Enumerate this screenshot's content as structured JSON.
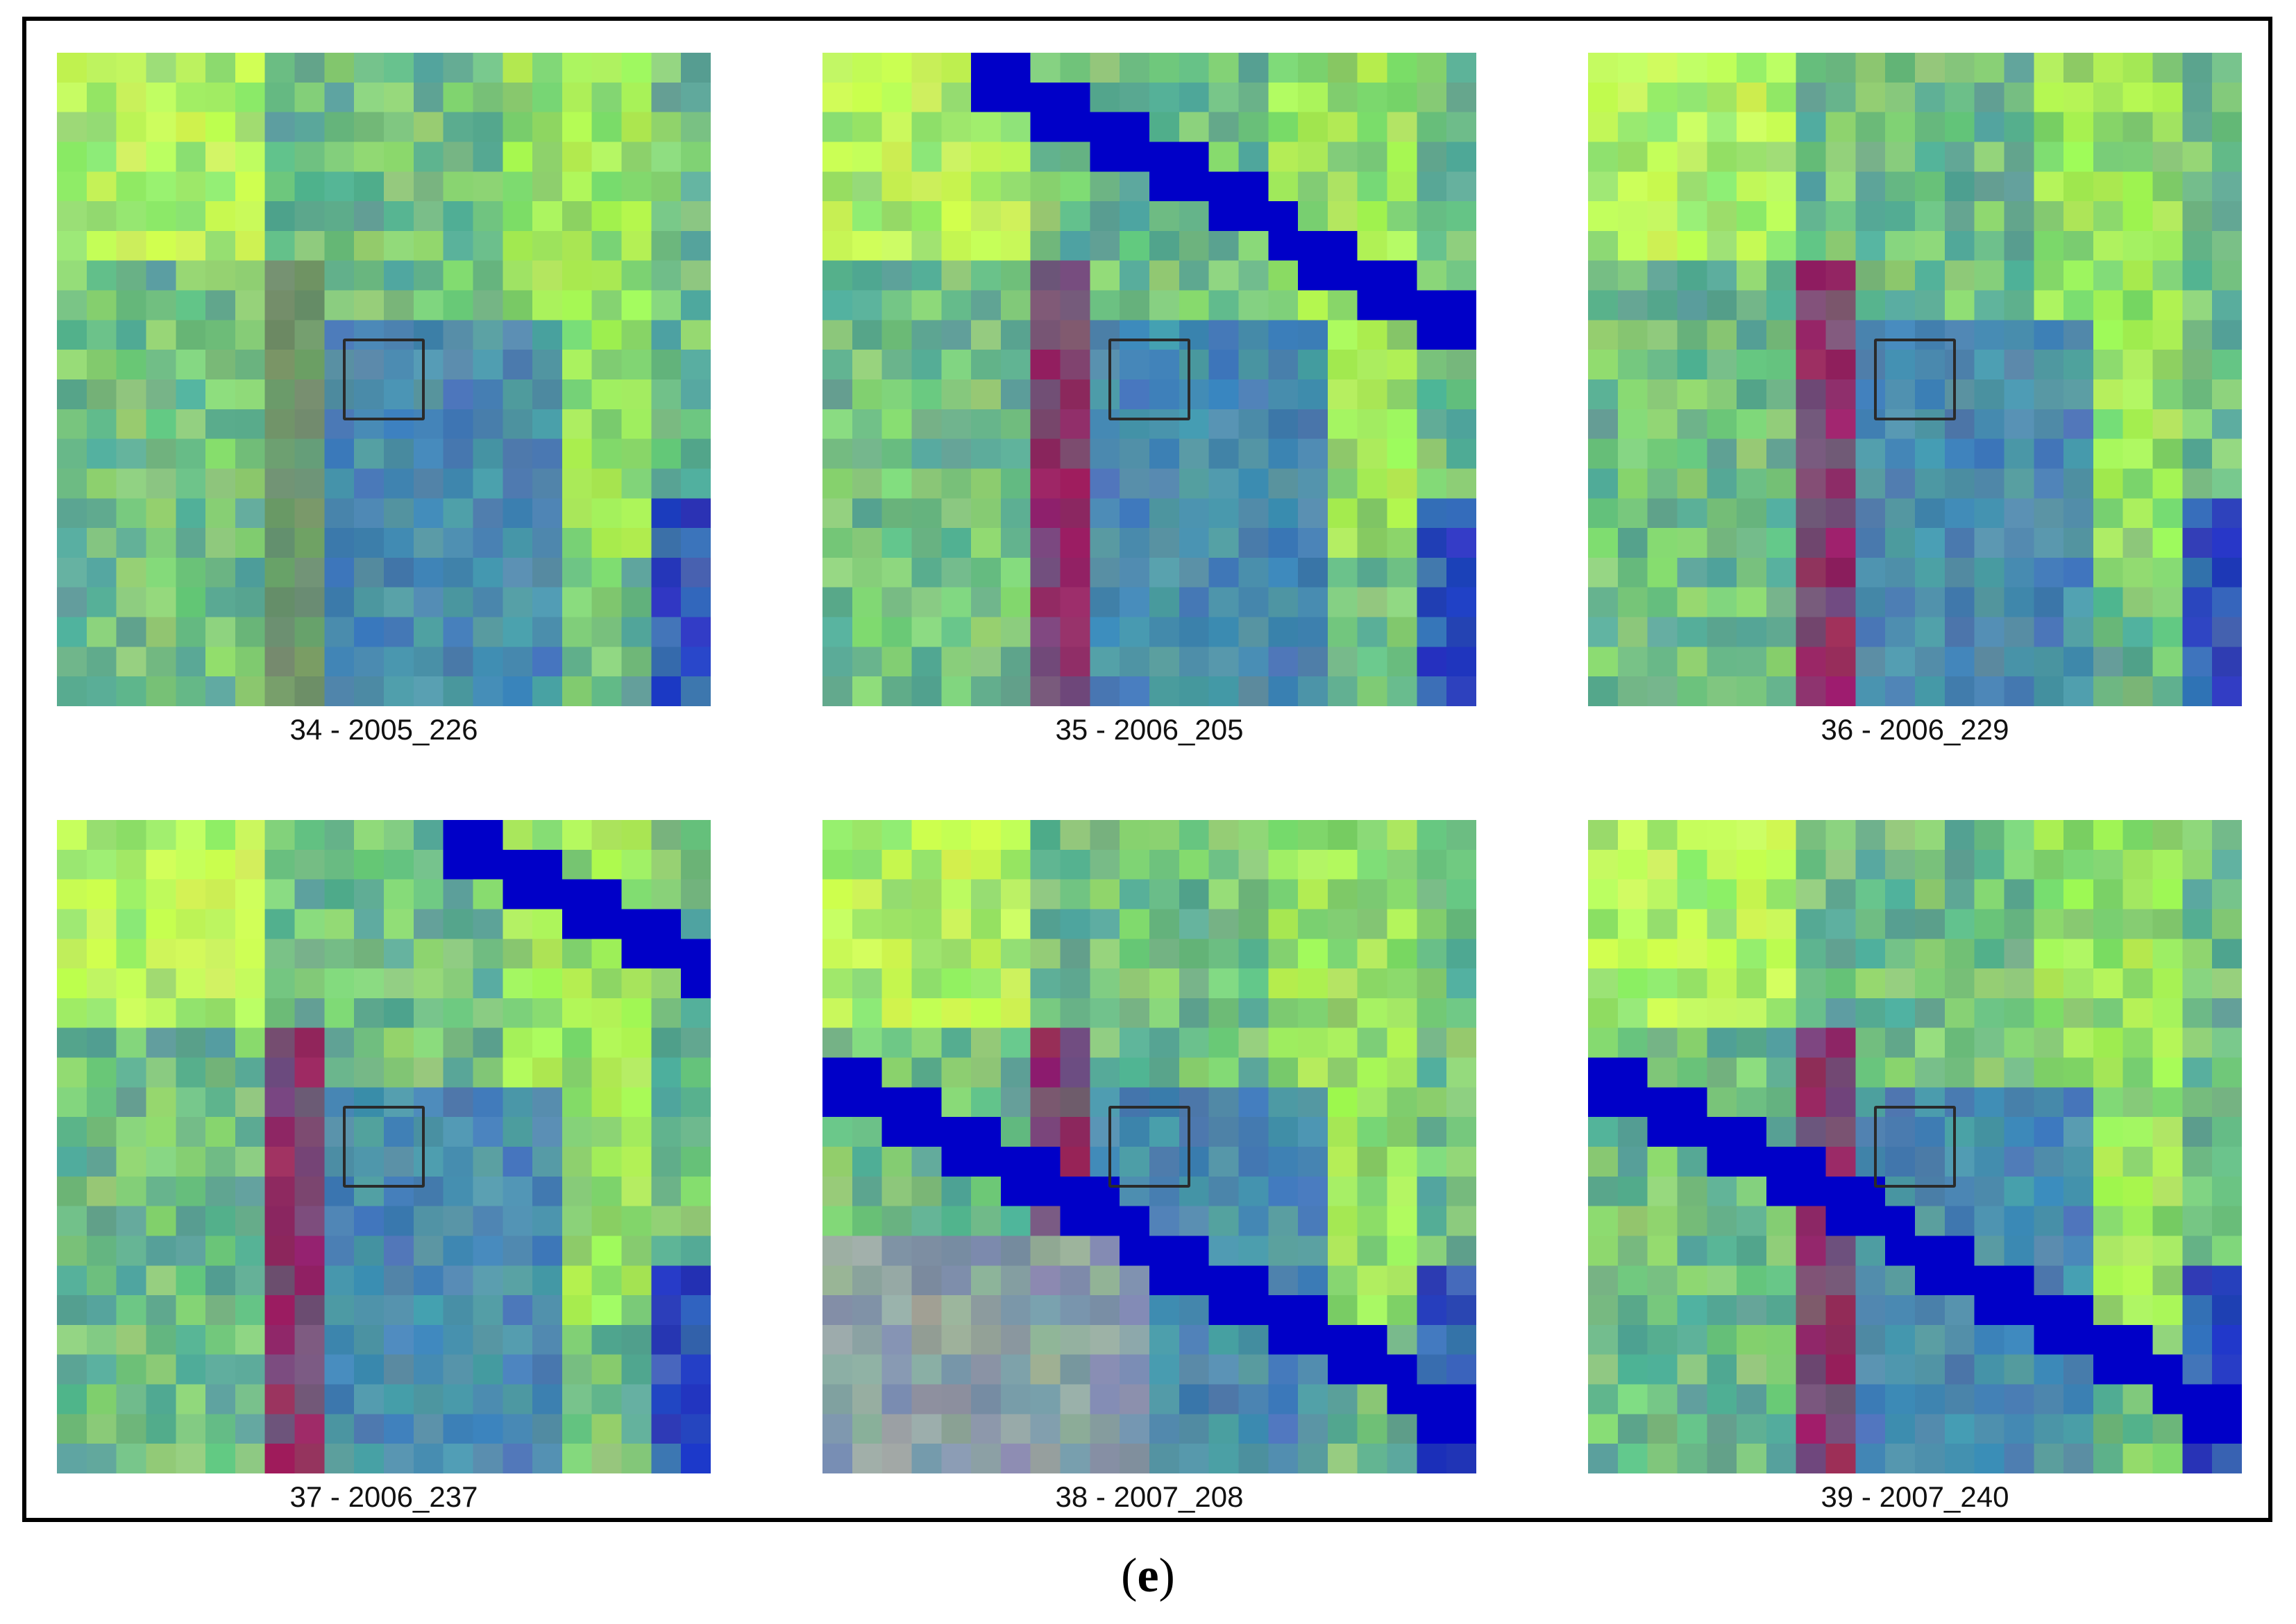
{
  "panels": [
    {
      "caption": "34 - 2005_226",
      "river": "none"
    },
    {
      "caption": "35 - 2006_205",
      "river": "top"
    },
    {
      "caption": "36 - 2006_229",
      "river": "none"
    },
    {
      "caption": "37 - 2006_237",
      "river": "top-right"
    },
    {
      "caption": "38 - 2007_208",
      "river": "middle"
    },
    {
      "caption": "39 - 2007_240",
      "river": "middle"
    }
  ],
  "subfigure": {
    "open": "(",
    "letter": "e",
    "close": ")"
  }
}
